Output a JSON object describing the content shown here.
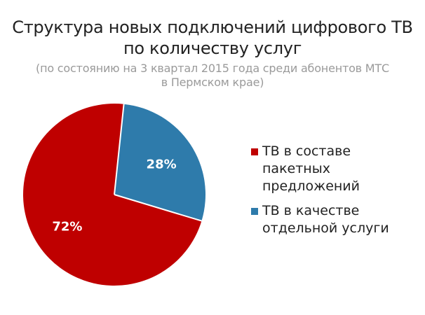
{
  "chart_data": {
    "type": "pie",
    "title_lines": [
      "Структура новых подключений цифрового ТВ",
      "по количеству услуг"
    ],
    "subtitle_lines": [
      "(по состоянию на 3 квартал 2015 года среди абонентов МТС",
      "в Пермском крае)"
    ],
    "slices": [
      {
        "label_lines": [
          "ТВ в составе",
          "пакетных",
          "предложений"
        ],
        "value": 72,
        "display": "72%",
        "color": "#bf0000"
      },
      {
        "label_lines": [
          "ТВ в качестве",
          "отдельной услуги"
        ],
        "value": 28,
        "display": "28%",
        "color": "#2e7bab"
      }
    ],
    "legend_position": "right"
  }
}
